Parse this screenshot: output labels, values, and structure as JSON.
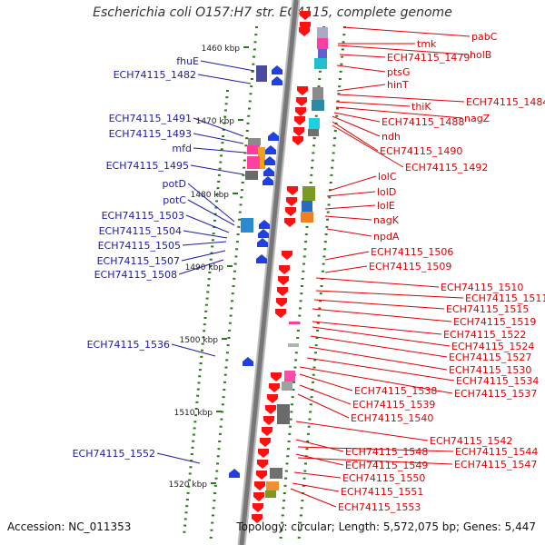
{
  "title": "Escherichia coli O157:H7 str. EC4115, complete genome",
  "footer": {
    "accession": "Accession: NC_011353",
    "topology": "Topology: circular; Length: 5,572,075 bp; Genes: 5,447"
  },
  "colors": {
    "left_label": "#1a1aa8",
    "right_label": "#e00000",
    "scale_tick": "#2a7a1a",
    "backbone": "#777777",
    "forward_gene": "#2040e0",
    "reverse_gene": "#ff1010"
  },
  "scale_labels": [
    "1460 kbp",
    "1470 kbp",
    "1480 kbp",
    "1490 kbp",
    "1500 kbp",
    "1510 kbp",
    "1520 kbp"
  ],
  "left_labels": [
    "fhuE",
    "ECH74115_1482",
    "ECH74115_1491",
    "ECH74115_1493",
    "mfd",
    "ECH74115_1495",
    "potD",
    "potC",
    "ECH74115_1503",
    "ECH74115_1504",
    "ECH74115_1505",
    "ECH74115_1507",
    "ECH74115_1508",
    "ECH74115_1536",
    "ECH74115_1552"
  ],
  "right_labels": [
    "pabC",
    "tmk",
    "holB",
    "ECH74115_1479",
    "ptsG",
    "hinT",
    "ECH74115_1484",
    "thiK",
    "nagZ",
    "ECH74115_1488",
    "ndh",
    "ECH74115_1490",
    "ECH74115_1492",
    "lolC",
    "lolD",
    "lolE",
    "nagK",
    "npdA",
    "ECH74115_1506",
    "ECH74115_1509",
    "ECH74115_1510",
    "ECH74115_1511",
    "ECH74115_1515",
    "ECH74115_1519",
    "ECH74115_1522",
    "ECH74115_1524",
    "ECH74115_1527",
    "ECH74115_1530",
    "ECH74115_1534",
    "ECH74115_1538",
    "ECH74115_1537",
    "ECH74115_1539",
    "ECH74115_1540",
    "ECH74115_1542",
    "ECH74115_1548",
    "ECH74115_1544",
    "ECH74115_1549",
    "ECH74115_1547",
    "ECH74115_1550",
    "ECH74115_1551",
    "ECH74115_1553"
  ]
}
